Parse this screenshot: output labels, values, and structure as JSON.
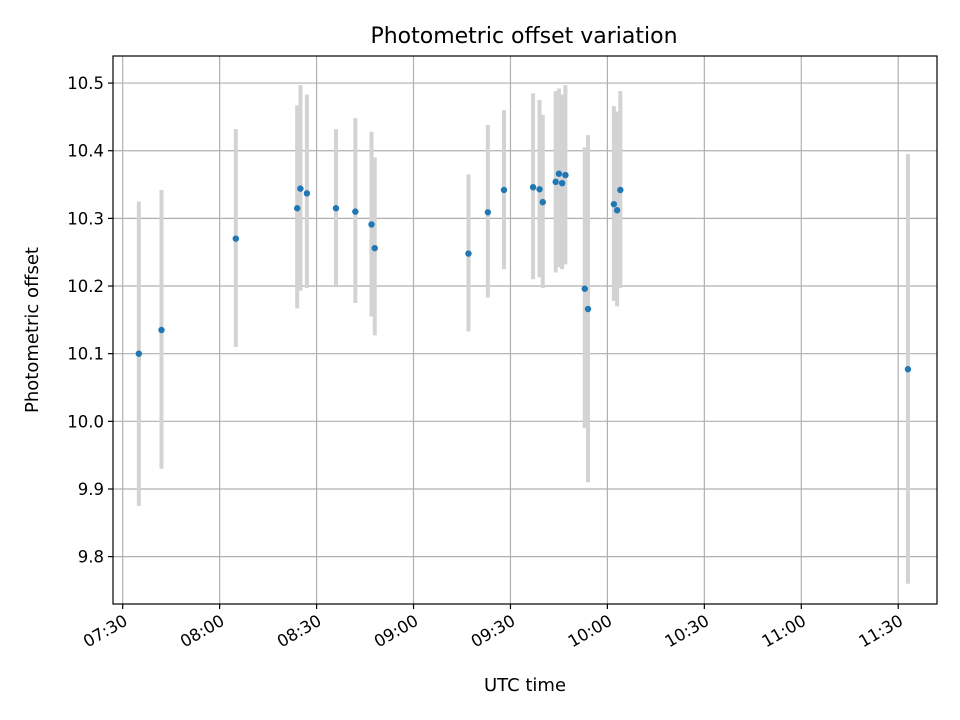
{
  "chart_data": {
    "type": "scatter",
    "title": "Photometric offset variation",
    "xlabel": "UTC time",
    "ylabel": "Photometric offset",
    "grid": true,
    "x_ticks": [
      "07:30",
      "08:00",
      "08:30",
      "09:00",
      "09:30",
      "10:00",
      "10:30",
      "11:00",
      "11:30"
    ],
    "y_ticks": [
      "9.8",
      "9.9",
      "10.0",
      "10.1",
      "10.2",
      "10.3",
      "10.4",
      "10.5"
    ],
    "xlim": [
      "07:27",
      "11:42"
    ],
    "ylim": [
      9.73,
      10.54
    ],
    "colors": {
      "points": "#1f77b4",
      "errorbars": "#d3d3d3",
      "grid": "#b0b0b0"
    },
    "points": [
      {
        "x": "07:35",
        "y": 10.1,
        "y_low": 9.875,
        "y_high": 10.325
      },
      {
        "x": "07:42",
        "y": 10.135,
        "y_low": 9.93,
        "y_high": 10.342
      },
      {
        "x": "08:05",
        "y": 10.27,
        "y_low": 10.11,
        "y_high": 10.432
      },
      {
        "x": "08:24",
        "y": 10.315,
        "y_low": 10.167,
        "y_high": 10.467
      },
      {
        "x": "08:25",
        "y": 10.344,
        "y_low": 10.193,
        "y_high": 10.497
      },
      {
        "x": "08:27",
        "y": 10.337,
        "y_low": 10.197,
        "y_high": 10.483
      },
      {
        "x": "08:36",
        "y": 10.315,
        "y_low": 10.2,
        "y_high": 10.432
      },
      {
        "x": "08:42",
        "y": 10.31,
        "y_low": 10.175,
        "y_high": 10.448
      },
      {
        "x": "08:47",
        "y": 10.291,
        "y_low": 10.155,
        "y_high": 10.428
      },
      {
        "x": "08:48",
        "y": 10.256,
        "y_low": 10.127,
        "y_high": 10.39
      },
      {
        "x": "09:17",
        "y": 10.248,
        "y_low": 10.133,
        "y_high": 10.365
      },
      {
        "x": "09:23",
        "y": 10.309,
        "y_low": 10.183,
        "y_high": 10.438
      },
      {
        "x": "09:28",
        "y": 10.342,
        "y_low": 10.225,
        "y_high": 10.46
      },
      {
        "x": "09:37",
        "y": 10.346,
        "y_low": 10.21,
        "y_high": 10.485
      },
      {
        "x": "09:39",
        "y": 10.343,
        "y_low": 10.213,
        "y_high": 10.475
      },
      {
        "x": "09:40",
        "y": 10.324,
        "y_low": 10.197,
        "y_high": 10.453
      },
      {
        "x": "09:44",
        "y": 10.354,
        "y_low": 10.22,
        "y_high": 10.488
      },
      {
        "x": "09:45",
        "y": 10.366,
        "y_low": 10.228,
        "y_high": 10.492
      },
      {
        "x": "09:46",
        "y": 10.352,
        "y_low": 10.225,
        "y_high": 10.483
      },
      {
        "x": "09:47",
        "y": 10.364,
        "y_low": 10.232,
        "y_high": 10.497
      },
      {
        "x": "09:53",
        "y": 10.196,
        "y_low": 9.99,
        "y_high": 10.405
      },
      {
        "x": "09:54",
        "y": 10.166,
        "y_low": 9.91,
        "y_high": 10.423
      },
      {
        "x": "10:02",
        "y": 10.321,
        "y_low": 10.178,
        "y_high": 10.466
      },
      {
        "x": "10:03",
        "y": 10.312,
        "y_low": 10.17,
        "y_high": 10.458
      },
      {
        "x": "10:04",
        "y": 10.342,
        "y_low": 10.197,
        "y_high": 10.488
      },
      {
        "x": "11:33",
        "y": 10.077,
        "y_low": 9.76,
        "y_high": 10.395
      }
    ]
  }
}
